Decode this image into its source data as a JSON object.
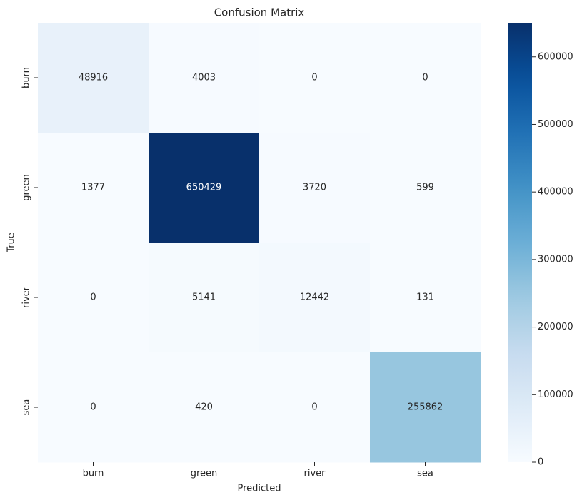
{
  "chart_data": {
    "type": "heatmap",
    "title": "Confusion Matrix",
    "x_label": "Predicted",
    "y_label": "True",
    "x_categories": [
      "burn",
      "green",
      "river",
      "sea"
    ],
    "y_categories": [
      "burn",
      "green",
      "river",
      "sea"
    ],
    "z": [
      [
        48916,
        4003,
        0,
        0
      ],
      [
        1377,
        650429,
        3720,
        599
      ],
      [
        0,
        5141,
        12442,
        131
      ],
      [
        0,
        420,
        0,
        255862
      ]
    ],
    "colormap": "Blues",
    "zlim": [
      0,
      650429
    ],
    "colorbar_ticks": [
      0,
      100000,
      200000,
      300000,
      400000,
      500000,
      600000
    ]
  }
}
